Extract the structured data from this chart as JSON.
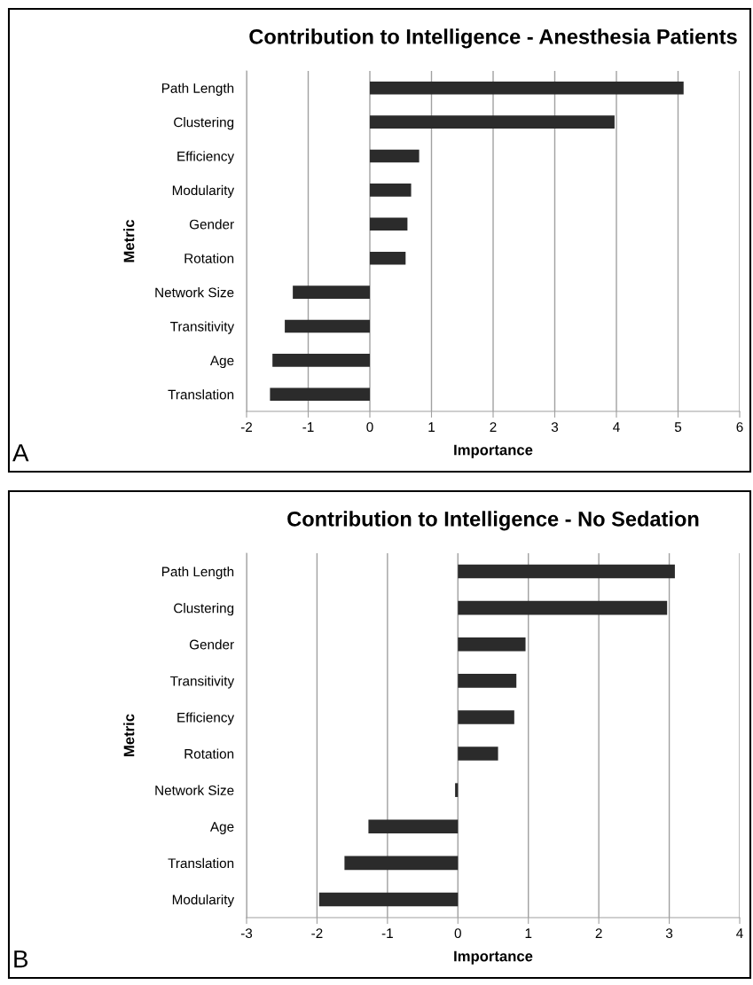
{
  "chart_data": [
    {
      "type": "bar",
      "orientation": "horizontal",
      "title": "Contribution to Intelligence - Anesthesia Patients",
      "xlabel": "Importance",
      "ylabel": "Metric",
      "categories": [
        "Path Length",
        "Clustering",
        "Efficiency",
        "Modularity",
        "Gender",
        "Rotation",
        "Network Size",
        "Transitivity",
        "Age",
        "Translation"
      ],
      "values": [
        5.09,
        3.97,
        0.8,
        0.67,
        0.61,
        0.58,
        -1.25,
        -1.38,
        -1.58,
        -1.62
      ],
      "color": "#2b2b2b",
      "xlim": [
        -2,
        6
      ],
      "xticks": [
        -2,
        -1,
        0,
        1,
        2,
        3,
        4,
        5,
        6
      ],
      "grid": "x",
      "annotations": [
        "A"
      ]
    },
    {
      "type": "bar",
      "orientation": "horizontal",
      "title": "Contribution to Intelligence - No Sedation",
      "xlabel": "Importance",
      "ylabel": "Metric",
      "categories": [
        "Path Length",
        "Clustering",
        "Gender",
        "Transitivity",
        "Efficiency",
        "Rotation",
        "Network Size",
        "Age",
        "Translation",
        "Modularity"
      ],
      "values": [
        3.08,
        2.97,
        0.96,
        0.83,
        0.8,
        0.57,
        -0.04,
        -1.27,
        -1.61,
        -1.97
      ],
      "color": "#2b2b2b",
      "xlim": [
        -3,
        4
      ],
      "xticks": [
        -3,
        -2,
        -1,
        0,
        1,
        2,
        3,
        4
      ],
      "grid": "x",
      "annotations": [
        "B"
      ]
    }
  ]
}
